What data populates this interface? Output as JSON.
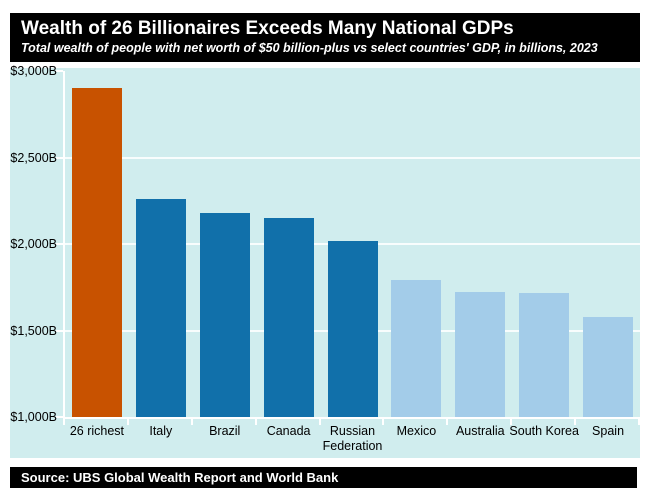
{
  "chart_data": {
    "type": "bar",
    "title": "Wealth of 26 Billionaires Exceeds Many National GDPs",
    "subtitle": "Total wealth of people with net worth of $50 billion-plus vs select countries' GDP, in billions, 2023",
    "source": "Source: UBS Global Wealth Report and World Bank",
    "categories": [
      "26 richest",
      "Italy",
      "Brazil",
      "Canada",
      "Russian Federation",
      "Mexico",
      "Australia",
      "South Korea",
      "Spain"
    ],
    "values": [
      2900,
      2260,
      2180,
      2150,
      2020,
      1790,
      1725,
      1715,
      1580
    ],
    "unit": "billions of US dollars",
    "xlabel": "",
    "ylabel": "",
    "ylim": [
      1000,
      3000
    ],
    "yticks": [
      {
        "value": 3000,
        "label": "$3,000B"
      },
      {
        "value": 2500,
        "label": "$2,500B"
      },
      {
        "value": 2000,
        "label": "$2,000B"
      },
      {
        "value": 1500,
        "label": "$1,500B"
      },
      {
        "value": 1000,
        "label": "$1,000B"
      }
    ],
    "grid": "horizontal white gridlines on light panel",
    "legend": "none",
    "colors": {
      "highlight": "#c85200",
      "dark": "#1170aa",
      "light": "#a3cce9",
      "panel_bg": "#d0edee",
      "header_bg": "#000000",
      "header_text": "#ffffff",
      "axis": "#ffffff",
      "label_text": "#000000"
    },
    "bar_colors": [
      "highlight",
      "dark",
      "dark",
      "dark",
      "dark",
      "light",
      "light",
      "light",
      "light"
    ]
  }
}
